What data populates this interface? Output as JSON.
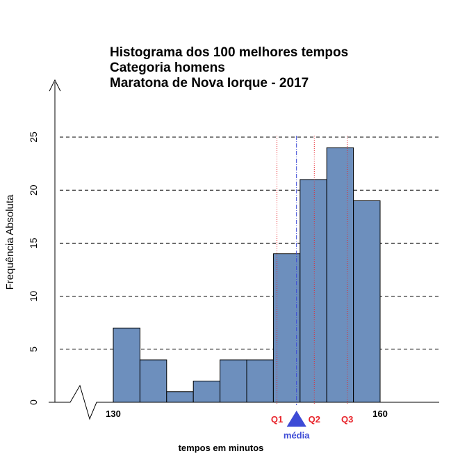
{
  "chart_data": {
    "type": "bar",
    "title_lines": [
      "Histograma dos 100 melhores tempos",
      "Categoria homens",
      "Maratona de Nova Iorque - 2017"
    ],
    "xlabel": "tempos em minutos",
    "ylabel": "Frequência Absoluta",
    "ylim": [
      0,
      25
    ],
    "yticks": [
      "0",
      "5",
      "10",
      "15",
      "20",
      "25"
    ],
    "grid": "horizontal dashed",
    "axis_break": true,
    "xticks": [
      {
        "value": 130,
        "label": "130"
      },
      {
        "value": 160,
        "label": "160"
      }
    ],
    "bins": [
      {
        "start": 130,
        "end": 133,
        "count": 7
      },
      {
        "start": 133,
        "end": 136,
        "count": 4
      },
      {
        "start": 136,
        "end": 139,
        "count": 1
      },
      {
        "start": 139,
        "end": 142,
        "count": 2
      },
      {
        "start": 142,
        "end": 145,
        "count": 4
      },
      {
        "start": 145,
        "end": 148,
        "count": 4
      },
      {
        "start": 148,
        "end": 151,
        "count": 14
      },
      {
        "start": 151,
        "end": 154,
        "count": 21
      },
      {
        "start": 154,
        "end": 157,
        "count": 24
      },
      {
        "start": 157,
        "end": 160,
        "count": 19
      }
    ],
    "bar_color": "#6d8fbd",
    "markers": [
      {
        "label": "Q1",
        "value": 148.4,
        "color": "#e8242b",
        "style": "quartile"
      },
      {
        "label": "média",
        "value": 150.6,
        "color": "#3d4bd6",
        "style": "mean"
      },
      {
        "label": "Q2",
        "value": 152.6,
        "color": "#e8242b",
        "style": "quartile"
      },
      {
        "label": "Q3",
        "value": 156.3,
        "color": "#e8242b",
        "style": "quartile"
      }
    ]
  }
}
